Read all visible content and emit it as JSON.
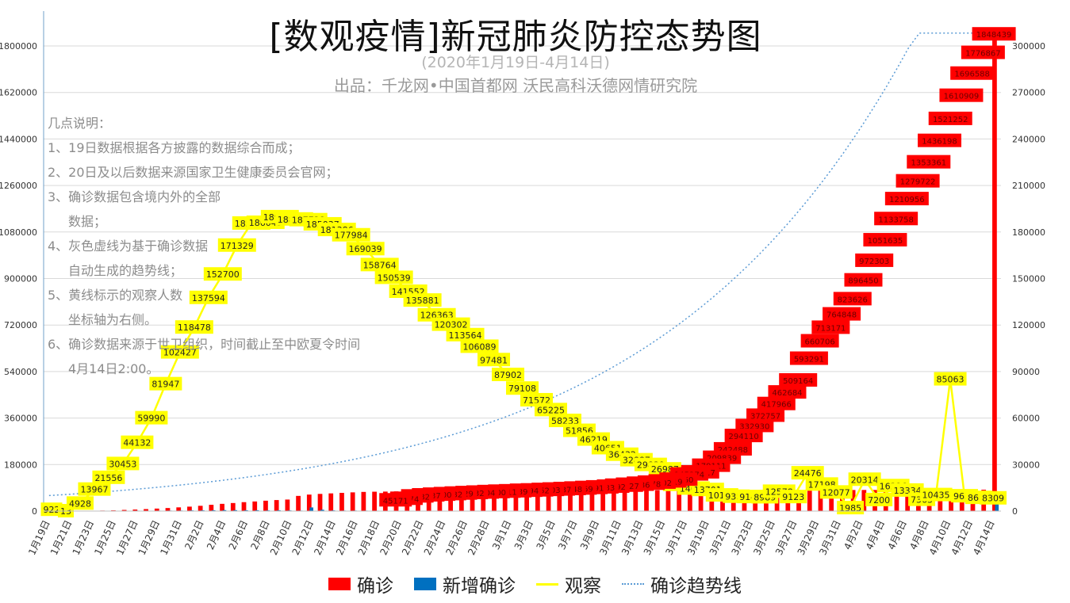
{
  "header": {
    "title": "[数观疫情]新冠肺炎防控态势图",
    "date_range": "(2020年1月19日-4月14日)",
    "source": "出品：千龙网•中国首都网   沃民高科沃德网情研究院"
  },
  "notes": [
    {
      "text": "几点说明：",
      "indent": false
    },
    {
      "text": "1、19日数据根据各方披露的数据综合而成；",
      "indent": false
    },
    {
      "text": "2、20日及以后数据来源国家卫生健康委员会官网；",
      "indent": false
    },
    {
      "text": "3、确诊数据包含境内外的全部",
      "indent": false
    },
    {
      "text": "数据；",
      "indent": true
    },
    {
      "text": "4、灰色虚线为基于确诊数据",
      "indent": false
    },
    {
      "text": "自动生成的趋势线；",
      "indent": true
    },
    {
      "text": "5、黄线标示的观察人数",
      "indent": false
    },
    {
      "text": "坐标轴为右侧。",
      "indent": true
    },
    {
      "text": "6、确诊数据来源于世卫组织，时间截止至中欧夏令时间",
      "indent": false
    },
    {
      "text": "4月14日2:00。",
      "indent": true
    }
  ],
  "colors": {
    "confirmed": "#ff0000",
    "new_confirmed": "#0070c0",
    "observation": "#ffff00",
    "trend": "#5b9bd5"
  },
  "chart_data": {
    "type": "bar",
    "y_left": {
      "min": 0,
      "max": 1800000,
      "ticks": [
        "0",
        "180000",
        "360000",
        "540000",
        "720000",
        "900000",
        "1080000",
        "1260000",
        "1440000",
        "1620000",
        "1800000"
      ]
    },
    "y_right": {
      "min": 0,
      "max": 300000,
      "ticks": [
        "0",
        "30000",
        "60000",
        "90000",
        "120000",
        "150000",
        "180000",
        "210000",
        "240000",
        "270000",
        "300000"
      ]
    },
    "x_labels": [
      "1月19日",
      "1月21日",
      "1月23日",
      "1月25日",
      "1月27日",
      "1月29日",
      "1月31日",
      "2月2日",
      "2月4日",
      "2月6日",
      "2月8日",
      "2月10日",
      "2月12日",
      "2月14日",
      "2月16日",
      "2月18日",
      "2月20日",
      "2月22日",
      "2月24日",
      "2月26日",
      "2月28日",
      "3月1日",
      "3月3日",
      "3月5日",
      "3月7日",
      "3月9日",
      "3月11日",
      "3月13日",
      "3月15日",
      "3月17日",
      "3月19日",
      "3月21日",
      "3月23日",
      "3月25日",
      "3月27日",
      "3月29日",
      "3月31日",
      "4月2日",
      "4月4日",
      "4月6日",
      "4月8日",
      "4月10日",
      "4月12日",
      "4月14日"
    ],
    "series": [
      {
        "name": "确诊",
        "axis": "left",
        "values": [
          62,
          291,
          571,
          830,
          1287,
          1975,
          2744,
          4515,
          5974,
          7711,
          9692,
          11791,
          14380,
          17205,
          20438,
          24324,
          28018,
          31161,
          34546,
          37198,
          40171,
          42638,
          44653,
          58761,
          63851,
          66492,
          68500,
          70548,
          72436,
          74185,
          75002,
          75465,
          76288,
          76936,
          77150,
          77658,
          78064,
          78497,
          78824,
          79251,
          79824,
          80026,
          80151,
          80270,
          80409,
          80552,
          80651,
          80695,
          80735,
          80754,
          80778,
          80793,
          80813,
          80824,
          80844,
          80860,
          80881,
          80894,
          80928,
          80967,
          81008,
          81054,
          81093,
          81171,
          81218,
          81285,
          81340,
          81394,
          81470,
          81518,
          81554,
          81589,
          81620,
          81639,
          81669,
          81708,
          81740,
          81802,
          81865,
          81907,
          81953,
          82052,
          82160,
          82295,
          82341,
          82447,
          82719,
          1848439
        ]
      },
      {
        "name": "新增确诊",
        "axis": "left",
        "values": [
          17,
          77,
          149,
          131,
          259,
          444,
          688,
          769,
          1771,
          1459,
          1737,
          1981,
          2102,
          2590,
          2829,
          3235,
          3887,
          3694,
          3143,
          3385,
          2652,
          2973,
          2467,
          2015,
          14108,
          5090,
          2641,
          2008,
          2048,
          1888,
          1749,
          394,
          889,
          397,
          648,
          409,
          508,
          406,
          433,
          327,
          427,
          573,
          202,
          125,
          119,
          139,
          143,
          99,
          44,
          40,
          19,
          24,
          15,
          20,
          11,
          20,
          16,
          21,
          13,
          34,
          39,
          41,
          46,
          39,
          78,
          47,
          67,
          55,
          54,
          74,
          48,
          36,
          35,
          31,
          19,
          30,
          39,
          32,
          62,
          63,
          46,
          99,
          108,
          135,
          46,
          106,
          272,
          71572
        ]
      },
      {
        "name": "观察",
        "axis": "right",
        "labels": [
          "922",
          "13",
          "4928",
          "13967",
          "21556",
          "30453",
          "44132",
          "59990",
          "81947",
          "102427",
          "118478",
          "137594",
          "152700",
          "171329",
          "185555",
          "186045",
          "189660",
          "188183",
          "187728",
          "185037",
          "181386",
          "177984",
          "169039",
          "158764",
          "150539",
          "141552",
          "135881",
          "126363",
          "120302",
          "113564",
          "106089",
          "97481",
          "87902",
          "79108",
          "71572",
          "65225",
          "58233",
          "51856",
          "46219",
          "40651",
          "36432",
          "32887",
          "29839",
          "26987",
          "16979",
          "14607",
          "13701",
          "10189",
          "9351",
          "9144",
          "8989",
          "12578",
          "9123",
          "24476",
          "17198",
          "12077",
          "1985",
          "20314",
          "7200",
          "16216",
          "13334",
          "7363",
          "10435",
          "85063",
          "9655",
          "8612",
          "8309"
        ]
      },
      {
        "name": "确诊趋势线",
        "axis": "left",
        "values": []
      }
    ],
    "note_confirmed_labels": [
      "1848439",
      "1776867",
      "1696588",
      "1610909",
      "1521252",
      "1436198",
      "1353361",
      "1279722",
      "1210956",
      "1133758",
      "1051635",
      "972303",
      "896450",
      "823626",
      "764848",
      "713171",
      "660706",
      "593291",
      "509164",
      "462684",
      "417966",
      "372757",
      "332930",
      "294110",
      "242488",
      "209839",
      "179111",
      "153517",
      "145374",
      "125260",
      "118319",
      "113702",
      "109578",
      "105586",
      "101927",
      "98192",
      "95333",
      "93091",
      "90869",
      "88948",
      "87137",
      "85403",
      "83652",
      "82294",
      "80239",
      "78811",
      "77200",
      "75204",
      "73332",
      "71429",
      "69232",
      "67100",
      "64437",
      "60332",
      "51174",
      "45171"
    ]
  },
  "legend": [
    {
      "label": "确诊",
      "kind": "bar",
      "color": "#ff0000"
    },
    {
      "label": "新增确诊",
      "kind": "bar",
      "color": "#0070c0"
    },
    {
      "label": "观察",
      "kind": "line",
      "color": "#ffff00"
    },
    {
      "label": "确诊趋势线",
      "kind": "dotted",
      "color": "#5b9bd5"
    }
  ]
}
